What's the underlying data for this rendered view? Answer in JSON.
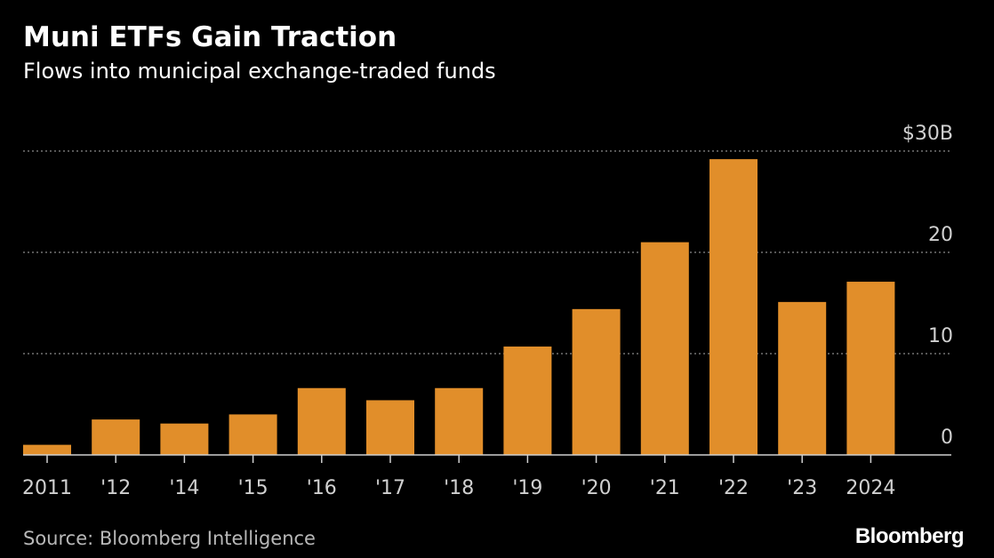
{
  "header": {
    "title": "Muni ETFs Gain Traction",
    "subtitle": "Flows into municipal exchange-traded funds"
  },
  "footer": {
    "source": "Source: Bloomberg Intelligence",
    "logo": "Bloomberg"
  },
  "colors": {
    "bar": "#E18E2A",
    "background": "#000000",
    "gridline": "#8a8a8a",
    "axis": "#d0d0d0",
    "tick_text": "#d0d0d0"
  },
  "chart_data": {
    "type": "bar",
    "title": "Muni ETFs Gain Traction",
    "subtitle": "Flows into municipal exchange-traded funds",
    "categories": [
      "2011",
      "'12",
      "'14",
      "'15",
      "'16",
      "'17",
      "'18",
      "'19",
      "'20",
      "'21",
      "'22",
      "'23",
      "2024"
    ],
    "values": [
      1.0,
      3.5,
      3.1,
      4.0,
      6.6,
      5.4,
      6.6,
      10.7,
      14.4,
      21.0,
      29.2,
      15.1,
      17.1
    ],
    "unit": "billion USD",
    "ylim": [
      0,
      30
    ],
    "yticks": [
      0,
      10,
      20,
      30
    ],
    "ytick_labels": [
      "0",
      "10",
      "20",
      "$30B"
    ],
    "y_axis_position": "right",
    "grid": true,
    "legend": "none",
    "xlabel": "",
    "ylabel": ""
  }
}
